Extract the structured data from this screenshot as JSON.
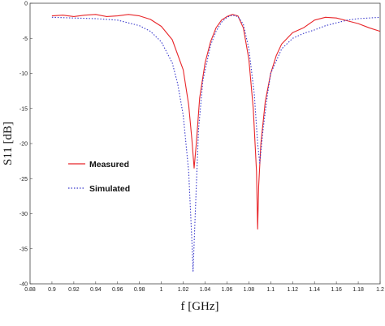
{
  "chart_data": {
    "type": "line",
    "title": "",
    "xlabel": "f [GHz]",
    "ylabel": "S11 [dB]",
    "xlim": [
      0.88,
      1.2
    ],
    "ylim": [
      -40,
      0
    ],
    "x_ticks": [
      "0.88",
      "0.9",
      "0.92",
      "0.94",
      "0.96",
      "0.98",
      "1",
      "1.02",
      "1.04",
      "1.06",
      "1.08",
      "1.1",
      "1.12",
      "1.14",
      "1.16",
      "1.18",
      "1.2"
    ],
    "y_ticks": [
      "0",
      "-5",
      "-10",
      "-15",
      "-20",
      "-25",
      "-30",
      "-35",
      "-40"
    ],
    "grid": false,
    "legend_position": "center-left",
    "series": [
      {
        "name": "Measured",
        "color": "#e8262a",
        "style": "solid",
        "points": [
          [
            0.9,
            -1.8
          ],
          [
            0.91,
            -1.7
          ],
          [
            0.92,
            -1.9
          ],
          [
            0.93,
            -1.7
          ],
          [
            0.94,
            -1.6
          ],
          [
            0.95,
            -1.9
          ],
          [
            0.96,
            -1.8
          ],
          [
            0.97,
            -1.6
          ],
          [
            0.98,
            -1.8
          ],
          [
            0.99,
            -2.3
          ],
          [
            1.0,
            -3.3
          ],
          [
            1.01,
            -5.2
          ],
          [
            1.02,
            -9.5
          ],
          [
            1.025,
            -14.5
          ],
          [
            1.028,
            -19.5
          ],
          [
            1.03,
            -23.5
          ],
          [
            1.032,
            -20.0
          ],
          [
            1.035,
            -13.5
          ],
          [
            1.04,
            -8.5
          ],
          [
            1.045,
            -5.5
          ],
          [
            1.05,
            -3.5
          ],
          [
            1.055,
            -2.4
          ],
          [
            1.06,
            -1.9
          ],
          [
            1.065,
            -1.6
          ],
          [
            1.07,
            -1.8
          ],
          [
            1.075,
            -3.5
          ],
          [
            1.08,
            -8.0
          ],
          [
            1.084,
            -15.0
          ],
          [
            1.087,
            -24.0
          ],
          [
            1.088,
            -32.2
          ],
          [
            1.089,
            -26.0
          ],
          [
            1.091,
            -20.0
          ],
          [
            1.095,
            -14.0
          ],
          [
            1.1,
            -10.0
          ],
          [
            1.105,
            -7.5
          ],
          [
            1.11,
            -5.8
          ],
          [
            1.12,
            -4.2
          ],
          [
            1.13,
            -3.5
          ],
          [
            1.14,
            -2.4
          ],
          [
            1.15,
            -2.0
          ],
          [
            1.16,
            -2.1
          ],
          [
            1.17,
            -2.5
          ],
          [
            1.18,
            -2.9
          ],
          [
            1.19,
            -3.5
          ],
          [
            1.2,
            -4.0
          ]
        ]
      },
      {
        "name": "Simulated",
        "color": "#3a3acc",
        "style": "dotted",
        "points": [
          [
            0.9,
            -2.0
          ],
          [
            0.92,
            -2.1
          ],
          [
            0.94,
            -2.2
          ],
          [
            0.96,
            -2.4
          ],
          [
            0.98,
            -3.2
          ],
          [
            0.99,
            -4.0
          ],
          [
            1.0,
            -5.5
          ],
          [
            1.01,
            -8.5
          ],
          [
            1.015,
            -11.5
          ],
          [
            1.02,
            -16.0
          ],
          [
            1.025,
            -24.0
          ],
          [
            1.028,
            -34.0
          ],
          [
            1.029,
            -38.2
          ],
          [
            1.031,
            -30.0
          ],
          [
            1.034,
            -18.0
          ],
          [
            1.038,
            -11.0
          ],
          [
            1.045,
            -6.0
          ],
          [
            1.05,
            -4.0
          ],
          [
            1.055,
            -2.7
          ],
          [
            1.06,
            -2.0
          ],
          [
            1.065,
            -1.7
          ],
          [
            1.07,
            -1.9
          ],
          [
            1.075,
            -3.0
          ],
          [
            1.08,
            -6.5
          ],
          [
            1.085,
            -13.0
          ],
          [
            1.088,
            -20.0
          ],
          [
            1.09,
            -22.8
          ],
          [
            1.093,
            -18.0
          ],
          [
            1.097,
            -13.0
          ],
          [
            1.1,
            -10.0
          ],
          [
            1.11,
            -6.5
          ],
          [
            1.12,
            -5.0
          ],
          [
            1.13,
            -4.3
          ],
          [
            1.14,
            -3.8
          ],
          [
            1.15,
            -3.2
          ],
          [
            1.16,
            -2.8
          ],
          [
            1.17,
            -2.4
          ],
          [
            1.18,
            -2.2
          ],
          [
            1.19,
            -2.1
          ],
          [
            1.2,
            -2.0
          ]
        ]
      }
    ]
  }
}
